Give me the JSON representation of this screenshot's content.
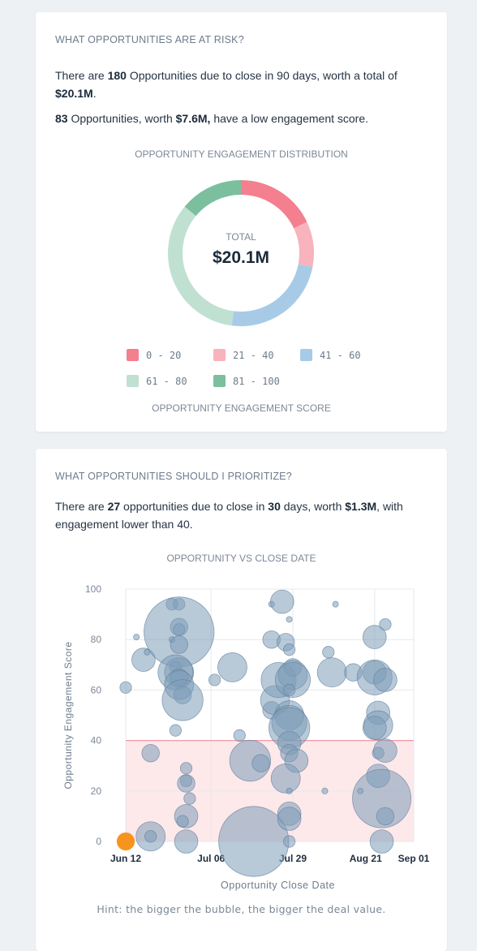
{
  "risk_card": {
    "title": "WHAT OPPORTUNITIES ARE AT RISK?",
    "line1_pre": "There are ",
    "line1_count": "180",
    "line1_mid": " Opportunities due to close in 90 days, worth a total of ",
    "line1_total": "$20.1M",
    "line1_end": ".",
    "line2_count": "83",
    "line2_mid": " Opportunities, worth ",
    "line2_value": "$7.6M,",
    "line2_end": " have a low engagement score.",
    "chart_title": "OPPORTUNITY ENGAGEMENT DISTRIBUTION",
    "center_label": "TOTAL",
    "center_value": "$20.1M",
    "legend_caption": "OPPORTUNITY ENGAGEMENT SCORE"
  },
  "prioritize_card": {
    "title": "WHAT OPPORTUNITIES SHOULD I PRIORITIZE?",
    "line_pre": "There are ",
    "line_count": "27",
    "line_mid1": " opportunities due to close in ",
    "line_days": "30",
    "line_mid2": " days, worth ",
    "line_value": "$1.3M",
    "line_end": ", with engagement lower than 40.",
    "chart_title": "OPPORTUNITY VS CLOSE DATE",
    "hint": "Hint: the bigger the bubble, the bigger the deal value."
  },
  "colors": {
    "band_0_20": "#f47f8f",
    "band_21_40": "#f8b3bd",
    "band_41_60": "#a7cbe7",
    "band_61_80": "#c0e0d2",
    "band_81_100": "#7bbf9f",
    "bubble": "#7d9cb8",
    "highlight": "#f7941d"
  },
  "chart_data": [
    {
      "type": "pie",
      "title": "OPPORTUNITY ENGAGEMENT DISTRIBUTION",
      "legend_title": "OPPORTUNITY ENGAGEMENT SCORE",
      "categories": [
        "0 - 20",
        "21 - 40",
        "41 - 60",
        "61 - 80",
        "81 - 100"
      ],
      "values": [
        18,
        10,
        24,
        34,
        14
      ],
      "colors": [
        "#f47f8f",
        "#f8b3bd",
        "#a7cbe7",
        "#c0e0d2",
        "#7bbf9f"
      ]
    },
    {
      "type": "scatter",
      "title": "OPPORTUNITY VS CLOSE DATE",
      "xlabel": "Opportunity Close Date",
      "ylabel": "Opportunity Engagement Score",
      "xticks": [
        "Jun 12",
        "Jul 06",
        "Jul 29",
        "Aug 21",
        "Sep 01"
      ],
      "yticks": [
        0,
        20,
        40,
        60,
        80,
        100
      ],
      "ylim": [
        0,
        100
      ],
      "x_start": "Jun 12",
      "x_end": "Sep 01",
      "threshold": 40,
      "points": [
        [
          "Jun 12",
          0,
          3,
          "highlight"
        ],
        [
          "Jun 12",
          61,
          2
        ],
        [
          "Jun 15",
          81,
          1
        ],
        [
          "Jun 17",
          72,
          4
        ],
        [
          "Jun 18",
          75,
          1
        ],
        [
          "Jun 19",
          35,
          3
        ],
        [
          "Jun 19",
          2,
          5
        ],
        [
          "Jun 19",
          2,
          2
        ],
        [
          "Jun 25",
          94,
          2
        ],
        [
          "Jun 27",
          94,
          2
        ],
        [
          "Jun 27",
          85,
          3
        ],
        [
          "Jun 27",
          84,
          2
        ],
        [
          "Jun 27",
          83,
          12
        ],
        [
          "Jun 25",
          80,
          1
        ],
        [
          "Jun 27",
          78,
          3
        ],
        [
          "Jun 26",
          69,
          2
        ],
        [
          "Jun 27",
          67,
          5
        ],
        [
          "Jun 26",
          67,
          6
        ],
        [
          "Jun 27",
          65,
          3
        ],
        [
          "Jun 27",
          62,
          5
        ],
        [
          "Jun 28",
          58,
          3
        ],
        [
          "Jun 28",
          56,
          7
        ],
        [
          "Jun 26",
          44,
          2
        ],
        [
          "Jun 29",
          29,
          2
        ],
        [
          "Jun 29",
          24,
          2
        ],
        [
          "Jun 29",
          23,
          3
        ],
        [
          "Jun 30",
          17,
          2
        ],
        [
          "Jun 29",
          10,
          4
        ],
        [
          "Jun 28",
          8,
          2
        ],
        [
          "Jun 29",
          0,
          4
        ],
        [
          "Jul 07",
          64,
          2
        ],
        [
          "Jul 12",
          69,
          5
        ],
        [
          "Jul 14",
          42,
          2
        ],
        [
          "Jul 17",
          32,
          7
        ],
        [
          "Jul 18",
          0,
          12
        ],
        [
          "Jul 20",
          31,
          3
        ],
        [
          "Jul 23",
          94,
          1
        ],
        [
          "Jul 23",
          80,
          3
        ],
        [
          "Jul 23",
          52,
          3
        ],
        [
          "Jul 24",
          56,
          5
        ],
        [
          "Jul 25",
          64,
          6
        ],
        [
          "Jul 26",
          95,
          4
        ],
        [
          "Jul 28",
          88,
          1
        ],
        [
          "Jul 27",
          79,
          3
        ],
        [
          "Jul 28",
          76,
          2
        ],
        [
          "Jul 29",
          69,
          3
        ],
        [
          "Jul 29",
          66,
          5
        ],
        [
          "Jul 29",
          64,
          6
        ],
        [
          "Jul 28",
          60,
          2
        ],
        [
          "Jul 28",
          50,
          5
        ],
        [
          "Jul 28",
          47,
          6
        ],
        [
          "Jul 28",
          45,
          7
        ],
        [
          "Jul 28",
          39,
          4
        ],
        [
          "Jul 28",
          35,
          3
        ],
        [
          "Jul 30",
          32,
          4
        ],
        [
          "Jul 27",
          25,
          5
        ],
        [
          "Jul 28",
          20,
          1
        ],
        [
          "Jul 28",
          11,
          4
        ],
        [
          "Jul 28",
          9,
          4
        ],
        [
          "Jul 28",
          0,
          2
        ],
        [
          "Aug 08",
          75,
          2
        ],
        [
          "Aug 07",
          20,
          1
        ],
        [
          "Aug 09",
          67,
          5
        ],
        [
          "Aug 10",
          94,
          1
        ],
        [
          "Aug 15",
          67,
          3
        ],
        [
          "Aug 17",
          20,
          1
        ],
        [
          "Aug 21",
          81,
          4
        ],
        [
          "Aug 21",
          67,
          4
        ],
        [
          "Aug 21",
          65,
          6
        ],
        [
          "Aug 22",
          51,
          4
        ],
        [
          "Aug 22",
          46,
          5
        ],
        [
          "Aug 21",
          45,
          4
        ],
        [
          "Aug 22",
          35,
          2
        ],
        [
          "Aug 22",
          26,
          4
        ],
        [
          "Aug 23",
          17,
          10
        ],
        [
          "Aug 24",
          86,
          2
        ],
        [
          "Aug 24",
          64,
          4
        ],
        [
          "Aug 24",
          36,
          4
        ],
        [
          "Aug 24",
          10,
          3
        ],
        [
          "Aug 23",
          0,
          4
        ]
      ]
    }
  ]
}
